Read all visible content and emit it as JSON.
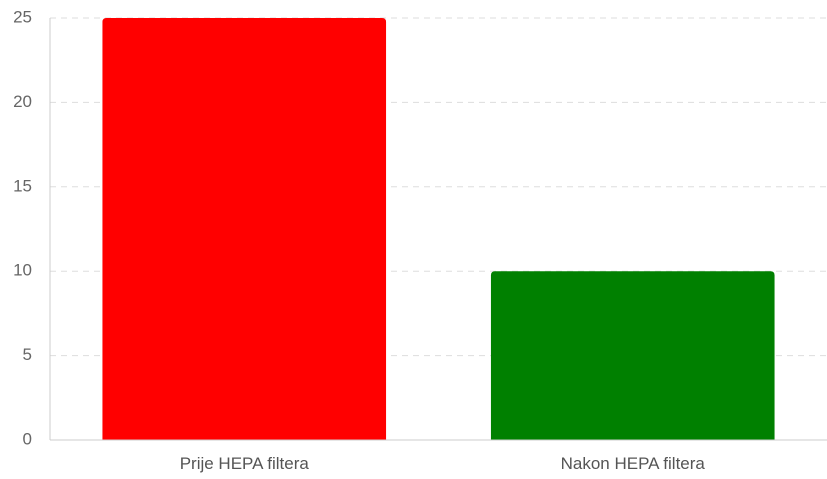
{
  "chart_data": {
    "type": "bar",
    "categories": [
      "Prije HEPA filtera",
      "Nakon HEPA filtera"
    ],
    "values": [
      25,
      10
    ],
    "colors": [
      "#ff0000",
      "#008000"
    ],
    "title": "",
    "xlabel": "",
    "ylabel": "",
    "ylim": [
      0,
      25
    ],
    "yticks": [
      0,
      5,
      10,
      15,
      20,
      25
    ],
    "grid": true,
    "legend": "none"
  }
}
